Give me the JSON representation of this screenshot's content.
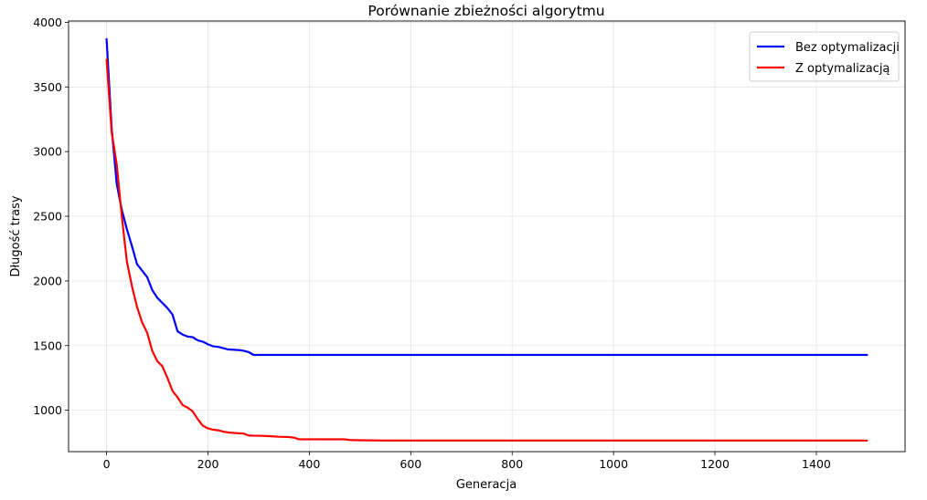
{
  "chart_data": {
    "type": "line",
    "title": "Porównanie zbieżności algorytmu",
    "xlabel": "Generacja",
    "ylabel": "Długość trasy",
    "xlim": [
      -75,
      1575
    ],
    "ylim": [
      680,
      4010
    ],
    "xticks": [
      0,
      200,
      400,
      600,
      800,
      1000,
      1200,
      1400
    ],
    "yticks": [
      1000,
      1500,
      2000,
      2500,
      3000,
      3500,
      4000
    ],
    "grid": true,
    "legend_position": "top-right",
    "series": [
      {
        "name": "Bez optymalizacji",
        "color": "#0000ff",
        "x": [
          0,
          10,
          20,
          30,
          40,
          50,
          60,
          70,
          80,
          90,
          100,
          110,
          120,
          130,
          140,
          150,
          160,
          170,
          180,
          190,
          200,
          210,
          220,
          230,
          240,
          250,
          260,
          270,
          280,
          290,
          300,
          400,
          600,
          800,
          1000,
          1200,
          1500
        ],
        "y": [
          3870,
          3180,
          2750,
          2550,
          2400,
          2270,
          2130,
          2080,
          2030,
          1930,
          1870,
          1830,
          1790,
          1740,
          1610,
          1585,
          1570,
          1565,
          1540,
          1530,
          1510,
          1495,
          1490,
          1480,
          1470,
          1468,
          1466,
          1460,
          1450,
          1428,
          1428,
          1428,
          1428,
          1428,
          1428,
          1428,
          1428
        ]
      },
      {
        "name": "Z optymalizacją",
        "color": "#ff0000",
        "x": [
          0,
          10,
          20,
          30,
          40,
          50,
          60,
          70,
          80,
          90,
          100,
          110,
          120,
          130,
          140,
          150,
          160,
          170,
          180,
          190,
          200,
          210,
          220,
          230,
          240,
          250,
          260,
          270,
          280,
          290,
          300,
          320,
          340,
          360,
          370,
          380,
          400,
          450,
          470,
          480,
          500,
          550,
          600,
          800,
          1000,
          1200,
          1500
        ],
        "y": [
          3710,
          3150,
          2900,
          2500,
          2150,
          1960,
          1800,
          1680,
          1600,
          1460,
          1380,
          1340,
          1250,
          1150,
          1100,
          1040,
          1020,
          990,
          930,
          880,
          860,
          850,
          845,
          835,
          828,
          825,
          822,
          820,
          805,
          803,
          803,
          800,
          795,
          793,
          788,
          775,
          775,
          775,
          775,
          770,
          768,
          766,
          766,
          766,
          766,
          766,
          766
        ]
      }
    ]
  }
}
